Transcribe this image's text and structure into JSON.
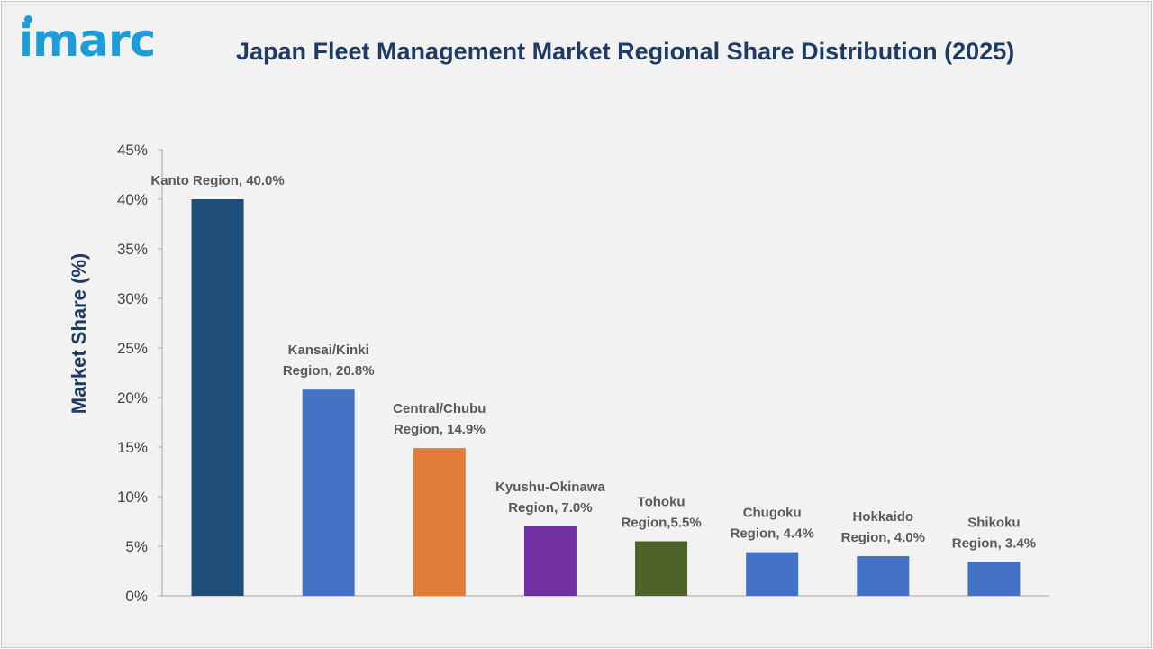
{
  "brand": {
    "logo_text": "imarc",
    "color": "#1f9bd7"
  },
  "chart_data": {
    "type": "bar",
    "title": "Japan Fleet Management Market Regional Share Distribution (2025)",
    "xlabel": "",
    "ylabel": "Market Share (%)",
    "ylim": [
      0,
      45
    ],
    "yticks": [
      0,
      5,
      10,
      15,
      20,
      25,
      30,
      35,
      40,
      45
    ],
    "ytick_labels": [
      "0%",
      "5%",
      "10%",
      "15%",
      "20%",
      "25%",
      "30%",
      "35%",
      "40%",
      "45%"
    ],
    "grid": false,
    "categories": [
      "Kanto Region",
      "Kansai/Kinki Region",
      "Central/Chubu Region",
      "Kyushu-Okinawa Region",
      "Tohoku Region",
      "Chugoku Region",
      "Hokkaido Region",
      "Shikoku Region"
    ],
    "values": [
      40.0,
      20.8,
      14.9,
      7.0,
      5.5,
      4.4,
      4.0,
      3.4
    ],
    "colors": [
      "#1f4e79",
      "#4472c4",
      "#e07b39",
      "#7030a0",
      "#4f6228",
      "#4472c4",
      "#4472c4",
      "#4472c4"
    ],
    "data_labels": [
      [
        "Kanto Region, 40.0%"
      ],
      [
        "Kansai/Kinki",
        "Region, 20.8%"
      ],
      [
        "Central/Chubu",
        "Region, 14.9%"
      ],
      [
        "Kyushu-Okinawa",
        "Region, 7.0%"
      ],
      [
        "Tohoku",
        "Region,5.5%"
      ],
      [
        "Chugoku",
        "Region, 4.4%"
      ],
      [
        "Hokkaido",
        "Region, 4.0%"
      ],
      [
        "Shikoku",
        "Region, 3.4%"
      ]
    ]
  }
}
